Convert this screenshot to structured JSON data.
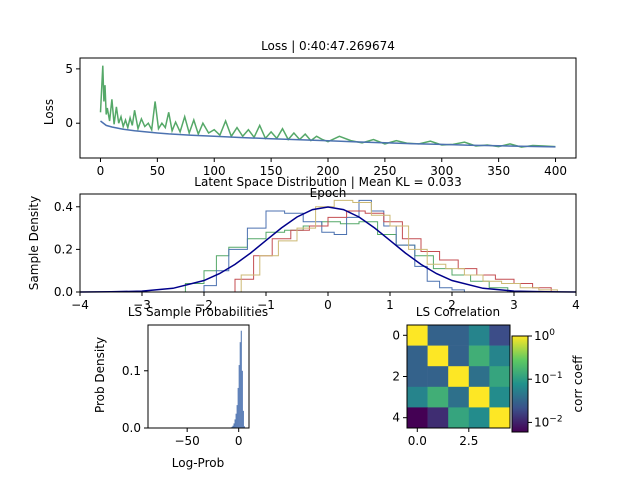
{
  "colors": {
    "blue": "#4c72b0",
    "green": "#55a868",
    "red": "#c44e52",
    "tan": "#ccb974",
    "navy": "#00008b"
  },
  "chart_data": [
    {
      "id": "loss",
      "type": "line",
      "title": "Loss | 0:40:47.269674",
      "xlabel": "Epoch",
      "ylabel": "Loss",
      "xlim": [
        -18,
        418
      ],
      "ylim": [
        -3.2,
        6.0
      ],
      "xticks": [
        0,
        50,
        100,
        150,
        200,
        250,
        300,
        350,
        400
      ],
      "yticks": [
        0,
        5
      ],
      "series": [
        {
          "color": "#4c72b0",
          "x": [
            0,
            5,
            10,
            20,
            30,
            40,
            50,
            60,
            80,
            100,
            125,
            150,
            175,
            200,
            225,
            250,
            275,
            300,
            325,
            350,
            375,
            400
          ],
          "y": [
            0.2,
            -0.2,
            -0.35,
            -0.55,
            -0.7,
            -0.8,
            -0.9,
            -0.98,
            -1.1,
            -1.2,
            -1.32,
            -1.42,
            -1.52,
            -1.62,
            -1.72,
            -1.8,
            -1.88,
            -1.95,
            -2.02,
            -2.08,
            -2.13,
            -2.18
          ]
        },
        {
          "color": "#55a868",
          "x": [
            0,
            2,
            3,
            4,
            5,
            6,
            8,
            10,
            12,
            14,
            16,
            18,
            20,
            22,
            24,
            26,
            28,
            30,
            33,
            36,
            39,
            42,
            45,
            48,
            51,
            54,
            57,
            60,
            63,
            66,
            70,
            74,
            78,
            82,
            86,
            90,
            95,
            100,
            105,
            110,
            115,
            120,
            125,
            130,
            135,
            140,
            145,
            150,
            155,
            160,
            165,
            170,
            175,
            180,
            185,
            190,
            195,
            200,
            210,
            220,
            230,
            240,
            250,
            260,
            270,
            280,
            290,
            300,
            310,
            320,
            330,
            340,
            350,
            360,
            370,
            380,
            390,
            400
          ],
          "y": [
            1.0,
            5.3,
            2.0,
            3.5,
            0.8,
            1.4,
            0.2,
            2.2,
            -0.1,
            1.5,
            0.0,
            0.6,
            -0.3,
            0.3,
            -0.4,
            0.5,
            -0.2,
            1.2,
            -0.5,
            0.4,
            -0.3,
            0.0,
            -0.6,
            2.0,
            -0.5,
            0.0,
            -0.4,
            1.0,
            -0.7,
            0.1,
            -0.8,
            0.6,
            -0.9,
            0.3,
            -1.0,
            0.0,
            -0.9,
            -0.6,
            -1.1,
            0.2,
            -1.2,
            -0.4,
            -1.2,
            -0.6,
            -1.3,
            -0.2,
            -1.4,
            -0.8,
            -1.4,
            -0.5,
            -1.5,
            -0.9,
            -1.5,
            -1.0,
            -1.6,
            -1.2,
            -1.5,
            -1.7,
            -1.2,
            -1.6,
            -1.8,
            -1.5,
            -1.9,
            -1.6,
            -1.85,
            -1.9,
            -1.65,
            -2.0,
            -1.95,
            -1.75,
            -2.1,
            -2.0,
            -2.15,
            -1.9,
            -2.2,
            -2.05,
            -2.1,
            -2.15
          ]
        }
      ]
    },
    {
      "id": "latent",
      "type": "line",
      "title": "Latent Space Distribution | Mean KL = 0.033",
      "xlabel": "",
      "ylabel": "Sample Density",
      "xlim": [
        -4,
        4
      ],
      "ylim": [
        0,
        0.46
      ],
      "xticks": [
        -4,
        -3,
        -2,
        -1,
        0,
        1,
        2,
        3,
        4
      ],
      "yticks": [
        0.0,
        0.2,
        0.4
      ],
      "ytick_labels": [
        "0.0",
        "0.2",
        "0.4"
      ],
      "series": [
        {
          "color": "#55a868",
          "x": [
            -2.6,
            -2.3,
            -2.0,
            -1.8,
            -1.6,
            -1.3,
            -1.0,
            -0.7,
            -0.4,
            -0.1,
            0.2,
            0.5,
            0.8,
            1.1,
            1.4,
            1.7,
            2.0,
            2.3,
            2.6,
            2.9
          ],
          "y": [
            0.0,
            0.04,
            0.1,
            0.17,
            0.21,
            0.25,
            0.28,
            0.29,
            0.31,
            0.33,
            0.32,
            0.33,
            0.27,
            0.22,
            0.17,
            0.11,
            0.08,
            0.05,
            0.02,
            0.0
          ]
        },
        {
          "color": "#4c72b0",
          "x": [
            -2.2,
            -2.0,
            -1.8,
            -1.6,
            -1.3,
            -1.0,
            -0.7,
            -0.4,
            -0.1,
            0.1,
            0.3,
            0.5,
            0.7,
            0.9,
            1.1,
            1.4,
            1.6,
            1.8,
            2.0,
            2.2,
            2.5
          ],
          "y": [
            0.0,
            0.03,
            0.1,
            0.2,
            0.3,
            0.38,
            0.37,
            0.33,
            0.28,
            0.27,
            0.35,
            0.43,
            0.38,
            0.31,
            0.22,
            0.12,
            0.05,
            0.02,
            0.01,
            0.0,
            0.0
          ]
        },
        {
          "color": "#c44e52",
          "x": [
            -1.8,
            -1.5,
            -1.2,
            -0.9,
            -0.6,
            -0.3,
            0.0,
            0.3,
            0.6,
            0.9,
            1.2,
            1.5,
            1.8,
            2.1,
            2.4,
            2.7,
            3.0,
            3.3,
            3.6
          ],
          "y": [
            0.0,
            0.06,
            0.17,
            0.25,
            0.29,
            0.31,
            0.35,
            0.38,
            0.37,
            0.33,
            0.25,
            0.19,
            0.15,
            0.11,
            0.08,
            0.06,
            0.04,
            0.02,
            0.0
          ]
        },
        {
          "color": "#ccb974",
          "x": [
            -1.7,
            -1.4,
            -1.1,
            -0.8,
            -0.5,
            -0.2,
            0.1,
            0.4,
            0.7,
            1.0,
            1.3,
            1.6,
            1.9,
            2.2,
            2.5,
            2.8,
            3.1,
            3.4,
            3.7
          ],
          "y": [
            0.0,
            0.08,
            0.17,
            0.24,
            0.3,
            0.4,
            0.43,
            0.42,
            0.36,
            0.31,
            0.2,
            0.13,
            0.11,
            0.08,
            0.05,
            0.04,
            0.02,
            0.01,
            0.0
          ]
        },
        {
          "color": "#00008b",
          "x": [
            -4,
            -3.5,
            -3,
            -2.5,
            -2,
            -1.75,
            -1.5,
            -1.25,
            -1,
            -0.75,
            -0.5,
            -0.25,
            0,
            0.25,
            0.5,
            0.75,
            1,
            1.25,
            1.5,
            1.75,
            2,
            2.5,
            3,
            3.5,
            4
          ],
          "y": [
            0.0001,
            0.0009,
            0.0044,
            0.0175,
            0.054,
            0.0863,
            0.1295,
            0.1826,
            0.242,
            0.3011,
            0.3521,
            0.3867,
            0.3989,
            0.3867,
            0.3521,
            0.3011,
            0.242,
            0.1826,
            0.1295,
            0.0863,
            0.054,
            0.0175,
            0.0044,
            0.0009,
            0.0001
          ]
        }
      ]
    },
    {
      "id": "probs",
      "type": "bar",
      "title": "LS Sample Probabilities",
      "xlabel": "Log-Prob",
      "ylabel": "Prob Density",
      "xlim": [
        -88,
        10
      ],
      "ylim": [
        0,
        0.18
      ],
      "xticks": [
        -50,
        0
      ],
      "yticks": [
        0.0,
        0.1
      ],
      "ytick_labels": [
        "0.0",
        "0.1"
      ],
      "color": "#4c72b0",
      "bins": [
        -8,
        -7,
        -6,
        -5,
        -4,
        -3,
        -2,
        -1,
        0,
        1,
        2,
        3,
        4,
        5
      ],
      "values": [
        0.001,
        0.002,
        0.004,
        0.008,
        0.015,
        0.025,
        0.04,
        0.07,
        0.11,
        0.15,
        0.17,
        0.1,
        0.03,
        0.003
      ]
    },
    {
      "id": "corr",
      "type": "heatmap",
      "title": "LS Correlation",
      "colorbar_label": "corr coeff",
      "colorbar_ticks": [
        {
          "exp": "0",
          "v": 1.0
        },
        {
          "exp": "−1",
          "v": 0.1
        },
        {
          "exp": "−2",
          "v": 0.01
        }
      ],
      "xticks": [
        0.0,
        2.5
      ],
      "xtick_labels": [
        "0.0",
        "2.5"
      ],
      "yticks": [
        0,
        2,
        4
      ],
      "log_range": [
        0.006,
        1.0
      ],
      "matrix": [
        [
          1.0,
          0.03,
          0.03,
          0.06,
          0.02
        ],
        [
          0.03,
          1.0,
          0.03,
          0.15,
          0.06
        ],
        [
          0.03,
          0.03,
          1.0,
          0.04,
          0.12
        ],
        [
          0.06,
          0.15,
          0.04,
          1.0,
          0.07
        ],
        [
          0.006,
          0.012,
          0.12,
          0.07,
          1.0
        ]
      ]
    }
  ]
}
